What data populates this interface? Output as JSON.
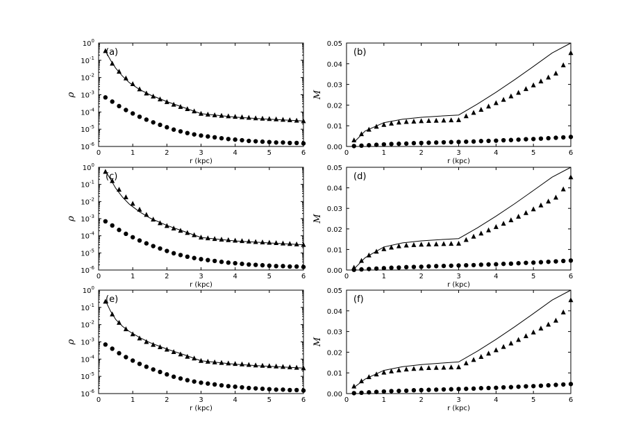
{
  "figure": {
    "panels": [
      {
        "label": "(a)"
      },
      {
        "label": "(b)"
      },
      {
        "label": "(c)"
      },
      {
        "label": "(d)"
      },
      {
        "label": "(e)"
      },
      {
        "label": "(f)"
      }
    ]
  },
  "chart_data": [
    {
      "type": "scatter",
      "panel_label": "(a)",
      "xlabel": "r (kpc)",
      "ylabel": "ρ",
      "xlim": [
        0,
        6
      ],
      "ylim": [
        1e-06,
        1
      ],
      "yscale": "log",
      "xticks": [
        "0",
        "1",
        "2",
        "3",
        "4",
        "5",
        "6"
      ],
      "yticks": [
        {
          "base": "10",
          "exp": "0"
        },
        {
          "base": "10",
          "exp": "-1"
        },
        {
          "base": "10",
          "exp": "-2"
        },
        {
          "base": "10",
          "exp": "-3"
        },
        {
          "base": "10",
          "exp": "-4"
        },
        {
          "base": "10",
          "exp": "-5"
        },
        {
          "base": "10",
          "exp": "-6"
        }
      ],
      "line": {
        "x": [
          0.2,
          0.35,
          0.5,
          0.7,
          0.9,
          1.2,
          1.5,
          2.0,
          2.5,
          3.0,
          4.0,
          5.0,
          6.0
        ],
        "y": [
          0.35,
          0.1,
          0.035,
          0.012,
          0.005,
          0.002,
          0.001,
          0.0004,
          0.00018,
          8e-05,
          5e-05,
          3.8e-05,
          3e-05
        ]
      },
      "triangles_y_at": [
        0.35,
        0.065,
        0.022,
        0.009,
        0.0042,
        0.0021,
        0.0012,
        0.0008,
        0.00055,
        0.00038,
        0.00027,
        0.0002,
        0.00015,
        0.00011,
        8e-05,
        7.2e-05,
        6.6e-05,
        6.1e-05,
        5.7e-05,
        5.3e-05,
        5e-05,
        4.7e-05,
        4.4e-05,
        4.2e-05,
        4e-05,
        3.8e-05,
        3.6e-05,
        3.4e-05,
        3.2e-05,
        3e-05
      ],
      "circles_y_at": [
        0.0007,
        0.0004,
        0.00022,
        0.00013,
        8.2e-05,
        5.3e-05,
        3.6e-05,
        2.5e-05,
        1.8e-05,
        1.3e-05,
        9.5e-06,
        7.5e-06,
        6e-06,
        5e-06,
        4.3e-06,
        3.8e-06,
        3.4e-06,
        3e-06,
        2.7e-06,
        2.5e-06,
        2.3e-06,
        2.1e-06,
        2e-06,
        1.9e-06,
        1.8e-06,
        1.7e-06,
        1.7e-06,
        1.6e-06,
        1.6e-06,
        1.5e-06
      ],
      "x_points": [
        0.2,
        0.4,
        0.6,
        0.8,
        1.0,
        1.2,
        1.4,
        1.6,
        1.8,
        2.0,
        2.2,
        2.4,
        2.6,
        2.8,
        3.0,
        3.2,
        3.4,
        3.6,
        3.8,
        4.0,
        4.2,
        4.4,
        4.6,
        4.8,
        5.0,
        5.2,
        5.4,
        5.6,
        5.8,
        6.0
      ]
    },
    {
      "type": "scatter",
      "panel_label": "(b)",
      "xlabel": "r (kpc)",
      "ylabel": "M",
      "xlim": [
        0,
        6
      ],
      "ylim": [
        0,
        0.05
      ],
      "yscale": "linear",
      "xticks": [
        "0",
        "1",
        "2",
        "3",
        "4",
        "5",
        "6"
      ],
      "yticks": [
        "0.00",
        "0.01",
        "0.02",
        "0.03",
        "0.04",
        "0.05"
      ],
      "line": {
        "x": [
          0.2,
          0.5,
          1.0,
          1.5,
          2.0,
          2.5,
          3.0,
          3.5,
          4.0,
          4.5,
          5.0,
          5.5,
          6.0
        ],
        "y": [
          0.002,
          0.0075,
          0.0115,
          0.0132,
          0.0141,
          0.0147,
          0.0152,
          0.0205,
          0.0262,
          0.0323,
          0.0387,
          0.0452,
          0.05
        ]
      },
      "triangles_y": [
        0.003,
        0.006,
        0.0082,
        0.0096,
        0.0105,
        0.0111,
        0.0116,
        0.0119,
        0.0121,
        0.0123,
        0.0124,
        0.0125,
        0.0126,
        0.0127,
        0.0128,
        0.0147,
        0.0163,
        0.0178,
        0.0194,
        0.021,
        0.0226,
        0.0243,
        0.026,
        0.0278,
        0.0296,
        0.0315,
        0.0334,
        0.0353,
        0.0393,
        0.0452
      ],
      "circles_y": [
        0.0002,
        0.0004,
        0.0006,
        0.0008,
        0.001,
        0.0012,
        0.0013,
        0.0014,
        0.0016,
        0.0017,
        0.0018,
        0.0019,
        0.002,
        0.0021,
        0.0022,
        0.0023,
        0.0024,
        0.0026,
        0.0027,
        0.0028,
        0.003,
        0.0031,
        0.0033,
        0.0035,
        0.0036,
        0.0038,
        0.004,
        0.0042,
        0.0044,
        0.0046
      ],
      "x_points": [
        0.2,
        0.4,
        0.6,
        0.8,
        1.0,
        1.2,
        1.4,
        1.6,
        1.8,
        2.0,
        2.2,
        2.4,
        2.6,
        2.8,
        3.0,
        3.2,
        3.4,
        3.6,
        3.8,
        4.0,
        4.2,
        4.4,
        4.6,
        4.8,
        5.0,
        5.2,
        5.4,
        5.6,
        5.8,
        6.0
      ]
    },
    {
      "type": "scatter",
      "panel_label": "(c)",
      "xlabel": "r (kpc)",
      "ylabel": "ρ",
      "xlim": [
        0,
        6
      ],
      "ylim": [
        1e-06,
        1
      ],
      "yscale": "log",
      "xticks": [
        "0",
        "1",
        "2",
        "3",
        "4",
        "5",
        "6"
      ],
      "yticks": [
        {
          "base": "10",
          "exp": "0"
        },
        {
          "base": "10",
          "exp": "-1"
        },
        {
          "base": "10",
          "exp": "-2"
        },
        {
          "base": "10",
          "exp": "-3"
        },
        {
          "base": "10",
          "exp": "-4"
        },
        {
          "base": "10",
          "exp": "-5"
        },
        {
          "base": "10",
          "exp": "-6"
        }
      ],
      "line": {
        "x": [
          0.2,
          0.35,
          0.5,
          0.7,
          0.9,
          1.2,
          1.5,
          2.0,
          2.5,
          3.0,
          4.0,
          5.0,
          6.0
        ],
        "y": [
          0.6,
          0.2,
          0.06,
          0.018,
          0.007,
          0.0025,
          0.0011,
          0.0004,
          0.00018,
          8e-05,
          5e-05,
          3.8e-05,
          3e-05
        ]
      },
      "triangles_y_at": [
        0.55,
        0.16,
        0.05,
        0.018,
        0.0075,
        0.0034,
        0.0017,
        0.0009,
        0.00055,
        0.00038,
        0.00027,
        0.0002,
        0.00015,
        0.00011,
        8e-05,
        7.2e-05,
        6.6e-05,
        6.1e-05,
        5.7e-05,
        5.3e-05,
        5e-05,
        4.7e-05,
        4.4e-05,
        4.2e-05,
        4e-05,
        3.8e-05,
        3.6e-05,
        3.4e-05,
        3.2e-05,
        3e-05
      ],
      "circles_y_at": [
        0.0007,
        0.0004,
        0.00022,
        0.00013,
        8.2e-05,
        5.3e-05,
        3.6e-05,
        2.5e-05,
        1.8e-05,
        1.3e-05,
        9.5e-06,
        7.5e-06,
        6e-06,
        5e-06,
        4.3e-06,
        3.8e-06,
        3.4e-06,
        3e-06,
        2.7e-06,
        2.5e-06,
        2.3e-06,
        2.1e-06,
        2e-06,
        1.9e-06,
        1.8e-06,
        1.7e-06,
        1.7e-06,
        1.6e-06,
        1.6e-06,
        1.5e-06
      ],
      "x_points": [
        0.2,
        0.4,
        0.6,
        0.8,
        1.0,
        1.2,
        1.4,
        1.6,
        1.8,
        2.0,
        2.2,
        2.4,
        2.6,
        2.8,
        3.0,
        3.2,
        3.4,
        3.6,
        3.8,
        4.0,
        4.2,
        4.4,
        4.6,
        4.8,
        5.0,
        5.2,
        5.4,
        5.6,
        5.8,
        6.0
      ]
    },
    {
      "type": "scatter",
      "panel_label": "(d)",
      "xlabel": "r (kpc)",
      "ylabel": "M",
      "xlim": [
        0,
        6
      ],
      "ylim": [
        0,
        0.05
      ],
      "yscale": "linear",
      "xticks": [
        "0",
        "1",
        "2",
        "3",
        "4",
        "5",
        "6"
      ],
      "yticks": [
        "0.00",
        "0.01",
        "0.02",
        "0.03",
        "0.04",
        "0.05"
      ],
      "line": {
        "x": [
          0.2,
          0.5,
          1.0,
          1.5,
          2.0,
          2.5,
          3.0,
          3.5,
          4.0,
          4.5,
          5.0,
          5.5,
          6.0
        ],
        "y": [
          0.0005,
          0.006,
          0.0112,
          0.0132,
          0.0142,
          0.0148,
          0.0153,
          0.0205,
          0.0262,
          0.0323,
          0.0387,
          0.0452,
          0.05
        ]
      },
      "triangles_y": [
        0.0012,
        0.0045,
        0.0072,
        0.009,
        0.0102,
        0.011,
        0.0116,
        0.012,
        0.0122,
        0.0124,
        0.0125,
        0.0126,
        0.0127,
        0.0128,
        0.0129,
        0.0147,
        0.0163,
        0.0178,
        0.0194,
        0.021,
        0.0226,
        0.0243,
        0.026,
        0.0278,
        0.0296,
        0.0315,
        0.0334,
        0.0353,
        0.0393,
        0.0452
      ],
      "circles_y": [
        0.0001,
        0.0003,
        0.0005,
        0.0007,
        0.0009,
        0.0011,
        0.0012,
        0.0014,
        0.0015,
        0.0016,
        0.0018,
        0.0019,
        0.002,
        0.0021,
        0.0022,
        0.0023,
        0.0024,
        0.0026,
        0.0027,
        0.0028,
        0.003,
        0.0031,
        0.0033,
        0.0035,
        0.0036,
        0.0038,
        0.004,
        0.0042,
        0.0044,
        0.0046
      ],
      "x_points": [
        0.2,
        0.4,
        0.6,
        0.8,
        1.0,
        1.2,
        1.4,
        1.6,
        1.8,
        2.0,
        2.2,
        2.4,
        2.6,
        2.8,
        3.0,
        3.2,
        3.4,
        3.6,
        3.8,
        4.0,
        4.2,
        4.4,
        4.6,
        4.8,
        5.0,
        5.2,
        5.4,
        5.6,
        5.8,
        6.0
      ]
    },
    {
      "type": "scatter",
      "panel_label": "(e)",
      "xlabel": "r (kpc)",
      "ylabel": "ρ",
      "xlim": [
        0,
        6
      ],
      "ylim": [
        1e-06,
        1
      ],
      "yscale": "log",
      "xticks": [
        "0",
        "1",
        "2",
        "3",
        "4",
        "5",
        "6"
      ],
      "yticks": [
        {
          "base": "10",
          "exp": "0"
        },
        {
          "base": "10",
          "exp": "-1"
        },
        {
          "base": "10",
          "exp": "-2"
        },
        {
          "base": "10",
          "exp": "-3"
        },
        {
          "base": "10",
          "exp": "-4"
        },
        {
          "base": "10",
          "exp": "-5"
        },
        {
          "base": "10",
          "exp": "-6"
        }
      ],
      "line": {
        "x": [
          0.2,
          0.35,
          0.5,
          0.7,
          0.9,
          1.2,
          1.5,
          2.0,
          2.5,
          3.0,
          4.0,
          5.0,
          6.0
        ],
        "y": [
          0.25,
          0.06,
          0.02,
          0.008,
          0.004,
          0.0018,
          0.0009,
          0.00038,
          0.00018,
          8e-05,
          5e-05,
          3.8e-05,
          3e-05
        ]
      },
      "triangles_y_at": [
        0.22,
        0.04,
        0.013,
        0.0055,
        0.0028,
        0.0016,
        0.001,
        0.00068,
        0.0005,
        0.00036,
        0.00026,
        0.00019,
        0.00014,
        0.00011,
        8e-05,
        7.2e-05,
        6.6e-05,
        6.1e-05,
        5.7e-05,
        5.3e-05,
        5e-05,
        4.7e-05,
        4.4e-05,
        4.2e-05,
        4e-05,
        3.8e-05,
        3.6e-05,
        3.4e-05,
        3.2e-05,
        3e-05
      ],
      "circles_y_at": [
        0.0007,
        0.0004,
        0.00022,
        0.00013,
        8.2e-05,
        5.3e-05,
        3.6e-05,
        2.5e-05,
        1.8e-05,
        1.3e-05,
        9.5e-06,
        7.5e-06,
        6e-06,
        5e-06,
        4.3e-06,
        3.8e-06,
        3.4e-06,
        3e-06,
        2.7e-06,
        2.5e-06,
        2.3e-06,
        2.1e-06,
        2e-06,
        1.9e-06,
        1.8e-06,
        1.7e-06,
        1.7e-06,
        1.6e-06,
        1.6e-06,
        1.5e-06
      ],
      "x_points": [
        0.2,
        0.4,
        0.6,
        0.8,
        1.0,
        1.2,
        1.4,
        1.6,
        1.8,
        2.0,
        2.2,
        2.4,
        2.6,
        2.8,
        3.0,
        3.2,
        3.4,
        3.6,
        3.8,
        4.0,
        4.2,
        4.4,
        4.6,
        4.8,
        5.0,
        5.2,
        5.4,
        5.6,
        5.8,
        6.0
      ]
    },
    {
      "type": "scatter",
      "panel_label": "(f)",
      "xlabel": "r (kpc)",
      "ylabel": "M",
      "xlim": [
        0,
        6
      ],
      "ylim": [
        0,
        0.05
      ],
      "yscale": "linear",
      "xticks": [
        "0",
        "1",
        "2",
        "3",
        "4",
        "5",
        "6"
      ],
      "yticks": [
        "0.00",
        "0.01",
        "0.02",
        "0.03",
        "0.04",
        "0.05"
      ],
      "line": {
        "x": [
          0.2,
          0.5,
          1.0,
          1.5,
          2.0,
          2.5,
          3.0,
          3.5,
          4.0,
          4.5,
          5.0,
          5.5,
          6.0
        ],
        "y": [
          0.003,
          0.007,
          0.0112,
          0.013,
          0.014,
          0.0147,
          0.0153,
          0.0205,
          0.0262,
          0.0323,
          0.0387,
          0.0452,
          0.05
        ]
      },
      "triangles_y": [
        0.0035,
        0.006,
        0.008,
        0.0093,
        0.0102,
        0.0108,
        0.0113,
        0.0117,
        0.012,
        0.0122,
        0.0124,
        0.0125,
        0.0126,
        0.0127,
        0.0128,
        0.0147,
        0.0163,
        0.0178,
        0.0194,
        0.021,
        0.0226,
        0.0243,
        0.026,
        0.0278,
        0.0296,
        0.0315,
        0.0334,
        0.0353,
        0.0393,
        0.0452
      ],
      "circles_y": [
        0.0002,
        0.0004,
        0.0006,
        0.0008,
        0.001,
        0.0012,
        0.0013,
        0.0014,
        0.0016,
        0.0017,
        0.0018,
        0.0019,
        0.002,
        0.0021,
        0.0022,
        0.0023,
        0.0024,
        0.0026,
        0.0027,
        0.0028,
        0.003,
        0.0031,
        0.0033,
        0.0035,
        0.0036,
        0.0038,
        0.004,
        0.0042,
        0.0044,
        0.0046
      ],
      "x_points": [
        0.2,
        0.4,
        0.6,
        0.8,
        1.0,
        1.2,
        1.4,
        1.6,
        1.8,
        2.0,
        2.2,
        2.4,
        2.6,
        2.8,
        3.0,
        3.2,
        3.4,
        3.6,
        3.8,
        4.0,
        4.2,
        4.4,
        4.6,
        4.8,
        5.0,
        5.2,
        5.4,
        5.6,
        5.8,
        6.0
      ]
    }
  ]
}
